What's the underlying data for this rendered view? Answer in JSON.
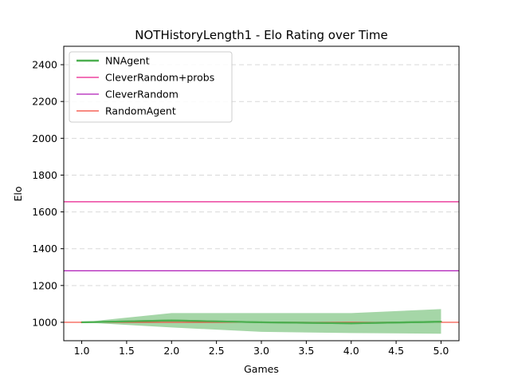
{
  "chart_data": {
    "type": "line",
    "title": "NOTHistoryLength1 - Elo Rating over Time",
    "xlabel": "Games",
    "ylabel": "Elo",
    "xlim": [
      0.8,
      5.2
    ],
    "ylim": [
      900,
      2500
    ],
    "xticks": [
      1.0,
      1.5,
      2.0,
      2.5,
      3.0,
      3.5,
      4.0,
      4.5,
      5.0
    ],
    "xtick_labels": [
      "1.0",
      "1.5",
      "2.0",
      "2.5",
      "3.0",
      "3.5",
      "4.0",
      "4.5",
      "5.0"
    ],
    "yticks": [
      1000,
      1200,
      1400,
      1600,
      1800,
      2000,
      2200,
      2400
    ],
    "ytick_labels": [
      "1000",
      "1200",
      "1400",
      "1600",
      "1800",
      "2000",
      "2200",
      "2400"
    ],
    "grid": "y-dashed",
    "legend_position": "top-left",
    "series": [
      {
        "name": "NNAgent",
        "kind": "line-with-band",
        "color": "#4caf50",
        "band_color": "#a5d6a7",
        "x": [
          1,
          2,
          3,
          4,
          5
        ],
        "y": [
          1000,
          1010,
          1000,
          995,
          1003
        ],
        "lower": [
          1000,
          972,
          948,
          942,
          938
        ],
        "upper": [
          1000,
          1050,
          1050,
          1050,
          1072
        ]
      },
      {
        "name": "CleverRandom+probs",
        "kind": "hline",
        "color": "#e91e8c",
        "y": 1655
      },
      {
        "name": "CleverRandom",
        "kind": "hline",
        "color": "#b01cb8",
        "y": 1280
      },
      {
        "name": "RandomAgent",
        "kind": "hline",
        "color": "#f44336",
        "y": 1000
      }
    ]
  }
}
